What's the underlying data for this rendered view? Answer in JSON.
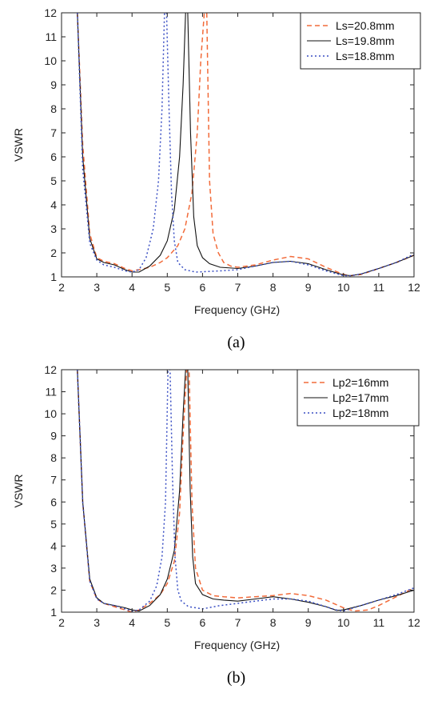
{
  "chart_data": [
    {
      "type": "line",
      "caption": "(a)",
      "xlabel": "Frequency (GHz)",
      "ylabel": "VSWR",
      "xlim": [
        2,
        12
      ],
      "ylim": [
        1,
        12
      ],
      "xticks": [
        "2",
        "3",
        "4",
        "5",
        "6",
        "7",
        "8",
        "9",
        "10",
        "11",
        "12"
      ],
      "yticks": [
        "1",
        "2",
        "3",
        "4",
        "5",
        "6",
        "7",
        "8",
        "9",
        "10",
        "11",
        "12"
      ],
      "grid": false,
      "legend_position": "top-right",
      "series": [
        {
          "name": "Ls=20.8mm",
          "color": "#f26b3a",
          "dash": "dashed",
          "x": [
            2.45,
            2.6,
            2.8,
            3.0,
            3.2,
            3.5,
            3.8,
            4.0,
            4.2,
            4.5,
            4.8,
            5.0,
            5.3,
            5.5,
            5.7,
            5.85,
            5.95,
            6.05,
            6.12,
            6.2,
            6.3,
            6.45,
            6.6,
            6.8,
            7.0,
            7.5,
            8.0,
            8.5,
            9.0,
            9.5,
            10.0,
            10.2,
            10.5,
            11.0,
            11.5,
            12.0
          ],
          "y": [
            12.0,
            6.5,
            2.8,
            1.8,
            1.65,
            1.55,
            1.35,
            1.25,
            1.3,
            1.4,
            1.6,
            1.8,
            2.3,
            3.0,
            4.5,
            7.0,
            10.0,
            12.0,
            12.0,
            5.0,
            2.8,
            2.0,
            1.6,
            1.45,
            1.4,
            1.5,
            1.7,
            1.85,
            1.75,
            1.4,
            1.1,
            1.05,
            1.1,
            1.35,
            1.6,
            1.9
          ]
        },
        {
          "name": "Ls=19.8mm",
          "color": "#111111",
          "dash": "solid",
          "x": [
            2.45,
            2.6,
            2.8,
            3.0,
            3.2,
            3.5,
            3.8,
            4.0,
            4.2,
            4.5,
            4.8,
            5.0,
            5.2,
            5.35,
            5.45,
            5.52,
            5.58,
            5.66,
            5.75,
            5.85,
            6.0,
            6.2,
            6.5,
            7.0,
            7.5,
            8.0,
            8.5,
            9.0,
            9.5,
            10.0,
            10.2,
            10.5,
            11.0,
            11.5,
            12.0
          ],
          "y": [
            12.0,
            6.0,
            2.6,
            1.75,
            1.6,
            1.5,
            1.3,
            1.2,
            1.2,
            1.45,
            1.9,
            2.5,
            3.8,
            6.0,
            9.0,
            12.0,
            12.0,
            7.0,
            3.5,
            2.3,
            1.8,
            1.55,
            1.4,
            1.35,
            1.45,
            1.6,
            1.65,
            1.55,
            1.3,
            1.08,
            1.05,
            1.12,
            1.35,
            1.6,
            1.9
          ]
        },
        {
          "name": "Ls=18.8mm",
          "color": "#3a4fc4",
          "dash": "dotted",
          "x": [
            2.45,
            2.6,
            2.8,
            3.0,
            3.2,
            3.5,
            3.8,
            4.0,
            4.2,
            4.4,
            4.6,
            4.75,
            4.85,
            4.92,
            4.98,
            5.05,
            5.12,
            5.2,
            5.3,
            5.5,
            5.8,
            6.5,
            7.0,
            7.5,
            8.0,
            8.5,
            9.0,
            9.5,
            10.0,
            10.2,
            10.5,
            11.0,
            11.5,
            12.0
          ],
          "y": [
            12.0,
            5.5,
            2.4,
            1.7,
            1.5,
            1.4,
            1.25,
            1.2,
            1.3,
            1.8,
            3.0,
            5.0,
            8.0,
            12.0,
            12.0,
            8.0,
            4.5,
            2.5,
            1.6,
            1.3,
            1.2,
            1.25,
            1.3,
            1.45,
            1.6,
            1.65,
            1.5,
            1.25,
            1.05,
            1.05,
            1.12,
            1.35,
            1.6,
            1.95
          ]
        }
      ]
    },
    {
      "type": "line",
      "caption": "(b)",
      "xlabel": "Frequency (GHz)",
      "ylabel": "VSWR",
      "xlim": [
        2,
        12
      ],
      "ylim": [
        1,
        12
      ],
      "xticks": [
        "2",
        "3",
        "4",
        "5",
        "6",
        "7",
        "8",
        "9",
        "10",
        "11",
        "12"
      ],
      "yticks": [
        "1",
        "2",
        "3",
        "4",
        "5",
        "6",
        "7",
        "8",
        "9",
        "10",
        "11",
        "12"
      ],
      "grid": false,
      "legend_position": "top-right",
      "series": [
        {
          "name": "Lp2=16mm",
          "color": "#f26b3a",
          "dash": "dashed",
          "x": [
            2.45,
            2.6,
            2.8,
            3.0,
            3.2,
            3.5,
            3.8,
            4.0,
            4.2,
            4.5,
            4.8,
            5.0,
            5.2,
            5.35,
            5.45,
            5.55,
            5.62,
            5.7,
            5.8,
            6.0,
            6.3,
            6.6,
            7.0,
            7.5,
            8.0,
            8.5,
            9.0,
            9.5,
            10.0,
            10.3,
            10.7,
            11.0,
            11.5,
            12.0
          ],
          "y": [
            12.0,
            6.0,
            2.4,
            1.6,
            1.4,
            1.25,
            1.1,
            1.0,
            1.1,
            1.4,
            1.8,
            2.3,
            3.3,
            5.5,
            9.0,
            12.0,
            12.0,
            6.0,
            3.0,
            2.0,
            1.75,
            1.7,
            1.65,
            1.7,
            1.75,
            1.85,
            1.75,
            1.55,
            1.2,
            1.05,
            1.1,
            1.3,
            1.7,
            2.1
          ]
        },
        {
          "name": "Lp2=17mm",
          "color": "#111111",
          "dash": "solid",
          "x": [
            2.45,
            2.6,
            2.8,
            3.0,
            3.2,
            3.5,
            3.8,
            4.0,
            4.2,
            4.5,
            4.8,
            5.0,
            5.2,
            5.35,
            5.45,
            5.52,
            5.58,
            5.65,
            5.72,
            5.8,
            6.0,
            6.3,
            6.6,
            7.0,
            7.5,
            8.0,
            8.5,
            9.0,
            9.5,
            9.8,
            10.0,
            10.5,
            11.0,
            11.5,
            12.0
          ],
          "y": [
            12.0,
            6.0,
            2.5,
            1.65,
            1.4,
            1.3,
            1.2,
            1.1,
            1.05,
            1.3,
            1.8,
            2.5,
            3.8,
            6.5,
            10.0,
            12.0,
            12.0,
            6.5,
            3.5,
            2.3,
            1.8,
            1.6,
            1.55,
            1.5,
            1.6,
            1.7,
            1.6,
            1.45,
            1.25,
            1.08,
            1.1,
            1.3,
            1.55,
            1.75,
            2.0
          ]
        },
        {
          "name": "Lp2=18mm",
          "color": "#3a4fc4",
          "dash": "dotted",
          "x": [
            2.45,
            2.6,
            2.8,
            3.0,
            3.2,
            3.5,
            3.8,
            4.0,
            4.2,
            4.5,
            4.7,
            4.85,
            4.95,
            5.02,
            5.08,
            5.15,
            5.22,
            5.3,
            5.4,
            5.6,
            6.0,
            6.5,
            7.0,
            7.5,
            8.0,
            8.5,
            9.0,
            9.5,
            9.8,
            10.0,
            10.5,
            11.0,
            11.5,
            12.0
          ],
          "y": [
            12.0,
            6.0,
            2.4,
            1.6,
            1.4,
            1.3,
            1.15,
            1.05,
            1.1,
            1.5,
            2.2,
            3.5,
            6.0,
            12.0,
            12.0,
            7.0,
            3.5,
            2.0,
            1.5,
            1.25,
            1.15,
            1.3,
            1.4,
            1.5,
            1.6,
            1.6,
            1.5,
            1.25,
            1.1,
            1.05,
            1.3,
            1.55,
            1.8,
            2.1
          ]
        }
      ]
    }
  ]
}
